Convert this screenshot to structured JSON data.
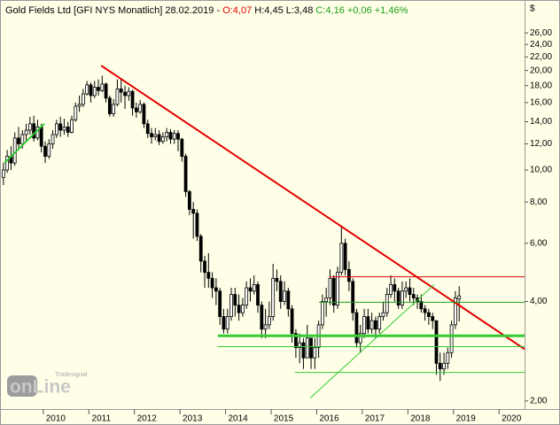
{
  "chart_data": {
    "type": "candlestick",
    "header": {
      "title": "Gold Fields Ltd [GFI NYS  Monatlich] 28.02.2019 -",
      "open_label": "O:4,07",
      "hl_label": "H:4,45 L:3,48",
      "close_label": "C:4,16 +0,06 +1,46%"
    },
    "y_label": "$",
    "watermark": {
      "brand": "Tradesignal",
      "product": "onLine"
    },
    "log_scale": true,
    "grid": false,
    "up_color": "#ffffff",
    "down_color": "#000000",
    "wick_color": "#000000",
    "x": [
      2009.125,
      2009.208,
      2009.292,
      2009.375,
      2009.458,
      2009.542,
      2009.625,
      2009.708,
      2009.792,
      2009.875,
      2009.958,
      2010.042,
      2010.125,
      2010.208,
      2010.292,
      2010.375,
      2010.458,
      2010.542,
      2010.625,
      2010.708,
      2010.792,
      2010.875,
      2010.958,
      2011.042,
      2011.125,
      2011.208,
      2011.292,
      2011.375,
      2011.458,
      2011.542,
      2011.625,
      2011.708,
      2011.792,
      2011.875,
      2011.958,
      2012.042,
      2012.125,
      2012.208,
      2012.292,
      2012.375,
      2012.458,
      2012.542,
      2012.625,
      2012.708,
      2012.792,
      2012.875,
      2012.958,
      2013.042,
      2013.125,
      2013.208,
      2013.292,
      2013.375,
      2013.458,
      2013.542,
      2013.625,
      2013.708,
      2013.792,
      2013.875,
      2013.958,
      2014.042,
      2014.125,
      2014.208,
      2014.292,
      2014.375,
      2014.458,
      2014.542,
      2014.625,
      2014.708,
      2014.792,
      2014.875,
      2014.958,
      2015.042,
      2015.125,
      2015.208,
      2015.292,
      2015.375,
      2015.458,
      2015.542,
      2015.625,
      2015.708,
      2015.792,
      2015.875,
      2015.958,
      2016.042,
      2016.125,
      2016.208,
      2016.292,
      2016.375,
      2016.458,
      2016.542,
      2016.625,
      2016.708,
      2016.792,
      2016.875,
      2016.958,
      2017.042,
      2017.125,
      2017.208,
      2017.292,
      2017.375,
      2017.458,
      2017.542,
      2017.625,
      2017.708,
      2017.792,
      2017.875,
      2017.958,
      2018.042,
      2018.125,
      2018.208,
      2018.292,
      2018.375,
      2018.458,
      2018.542,
      2018.625,
      2018.708,
      2018.792,
      2018.875,
      2018.958,
      2019.042,
      2019.125
    ],
    "open": [
      9.5,
      10.0,
      11.0,
      10.5,
      12.5,
      12.0,
      12.8,
      13.2,
      13.8,
      12.5,
      13.5,
      11.8,
      11.0,
      12.0,
      12.8,
      13.8,
      13.2,
      13.5,
      13.0,
      14.2,
      15.6,
      15.8,
      17.0,
      18.1,
      16.8,
      17.8,
      17.4,
      18.2,
      16.5,
      14.8,
      15.8,
      17.6,
      17.2,
      16.8,
      17.3,
      15.4,
      15.0,
      15.8,
      13.8,
      12.9,
      12.6,
      12.8,
      12.2,
      12.6,
      13.0,
      12.4,
      12.9,
      12.4,
      11.0,
      8.6,
      7.6,
      7.4,
      6.3,
      5.3,
      4.9,
      4.7,
      4.4,
      4.3,
      3.6,
      3.3,
      3.6,
      4.2,
      3.9,
      3.7,
      3.9,
      4.4,
      4.3,
      4.5,
      3.9,
      3.3,
      3.4,
      3.6,
      4.7,
      4.6,
      4.0,
      4.3,
      3.8,
      3.2,
      2.9,
      3.0,
      2.7,
      3.1,
      2.7,
      2.9,
      3.4,
      4.0,
      4.1,
      4.7,
      3.9,
      4.9,
      6.0,
      5.0,
      4.6,
      3.7,
      3.0,
      3.2,
      3.6,
      3.3,
      3.5,
      3.3,
      3.6,
      3.7,
      4.2,
      4.5,
      4.3,
      3.9,
      4.3,
      4.4,
      4.2,
      4.1,
      4.0,
      3.8,
      3.7,
      3.6,
      3.5,
      2.6,
      2.5,
      2.6,
      2.8,
      3.4,
      4.07
    ],
    "high": [
      10.5,
      11.5,
      11.8,
      13.0,
      13.5,
      13.2,
      13.8,
      14.5,
      14.6,
      14.2,
      13.8,
      12.2,
      12.4,
      13.2,
      14.2,
      14.5,
      14.3,
      14.0,
      14.6,
      16.0,
      16.8,
      17.6,
      18.6,
      18.4,
      18.6,
      18.8,
      19.3,
      18.4,
      16.8,
      16.4,
      18.8,
      19.0,
      18.0,
      17.8,
      17.5,
      16.0,
      16.3,
      16.0,
      14.2,
      13.4,
      13.4,
      13.2,
      13.0,
      13.4,
      13.3,
      13.2,
      13.2,
      12.5,
      11.2,
      8.7,
      8.0,
      7.6,
      6.4,
      5.5,
      5.6,
      4.9,
      4.7,
      4.4,
      3.8,
      3.8,
      4.4,
      4.4,
      4.2,
      4.1,
      4.6,
      4.7,
      4.8,
      4.6,
      4.0,
      3.8,
      4.0,
      5.2,
      5.0,
      4.8,
      4.6,
      4.4,
      3.9,
      3.3,
      3.2,
      3.1,
      3.4,
      3.1,
      3.1,
      3.5,
      4.2,
      4.4,
      5.0,
      4.8,
      5.1,
      6.8,
      6.2,
      5.3,
      4.7,
      3.8,
      3.4,
      3.8,
      3.8,
      3.7,
      3.6,
      3.7,
      4.0,
      4.4,
      4.8,
      4.7,
      4.4,
      4.6,
      4.6,
      4.7,
      4.4,
      4.2,
      4.2,
      3.9,
      3.8,
      3.7,
      3.5,
      2.8,
      2.8,
      2.9,
      3.5,
      4.3,
      4.45
    ],
    "low": [
      9.0,
      9.8,
      10.0,
      10.3,
      11.5,
      11.6,
      12.2,
      12.8,
      12.2,
      12.3,
      11.3,
      10.5,
      10.8,
      11.6,
      12.5,
      12.6,
      12.8,
      12.6,
      12.9,
      14.0,
      15.0,
      15.5,
      16.8,
      16.0,
      16.5,
      16.8,
      17.2,
      16.0,
      14.5,
      14.5,
      15.6,
      16.0,
      15.3,
      16.2,
      14.6,
      14.4,
      14.8,
      13.4,
      12.5,
      12.0,
      12.3,
      11.9,
      12.0,
      12.2,
      12.0,
      12.0,
      11.4,
      10.6,
      8.3,
      7.3,
      6.2,
      6.1,
      4.9,
      4.4,
      4.4,
      4.1,
      3.9,
      3.4,
      3.2,
      3.2,
      3.5,
      3.6,
      3.5,
      3.6,
      3.8,
      4.0,
      4.2,
      3.7,
      3.1,
      3.1,
      3.3,
      3.5,
      4.3,
      3.8,
      3.9,
      3.6,
      3.0,
      2.7,
      2.6,
      2.5,
      2.7,
      2.5,
      2.5,
      2.7,
      3.3,
      3.6,
      3.9,
      3.7,
      3.8,
      4.8,
      4.8,
      4.3,
      3.5,
      2.9,
      2.8,
      3.1,
      3.2,
      3.2,
      3.1,
      3.2,
      3.5,
      3.6,
      4.1,
      4.0,
      3.8,
      3.8,
      4.1,
      4.0,
      3.9,
      3.8,
      3.7,
      3.5,
      3.4,
      3.3,
      2.4,
      2.3,
      2.4,
      2.5,
      2.7,
      3.3,
      3.48
    ],
    "close": [
      10.0,
      11.0,
      10.5,
      12.5,
      12.0,
      12.8,
      13.2,
      13.8,
      12.5,
      13.5,
      11.8,
      11.0,
      12.0,
      12.8,
      13.8,
      13.2,
      13.5,
      13.0,
      14.2,
      15.6,
      15.8,
      17.0,
      18.1,
      16.8,
      17.8,
      17.4,
      18.2,
      16.5,
      14.8,
      15.8,
      17.6,
      17.2,
      16.8,
      17.3,
      15.4,
      15.0,
      15.8,
      13.8,
      12.9,
      12.6,
      12.8,
      12.2,
      12.6,
      13.0,
      12.4,
      12.9,
      12.4,
      11.0,
      8.6,
      7.6,
      7.4,
      6.3,
      5.3,
      4.9,
      4.7,
      4.4,
      4.3,
      3.6,
      3.3,
      3.6,
      4.2,
      3.9,
      3.7,
      3.9,
      4.4,
      4.3,
      4.5,
      3.9,
      3.3,
      3.4,
      3.6,
      4.7,
      4.6,
      4.0,
      4.3,
      3.8,
      3.2,
      2.9,
      3.0,
      2.7,
      3.1,
      2.7,
      2.9,
      3.4,
      4.0,
      4.1,
      4.7,
      3.9,
      4.9,
      6.0,
      5.0,
      4.6,
      3.7,
      3.0,
      3.2,
      3.6,
      3.3,
      3.5,
      3.3,
      3.6,
      3.7,
      4.2,
      4.5,
      4.3,
      3.9,
      4.3,
      4.4,
      4.2,
      4.1,
      4.0,
      3.8,
      3.7,
      3.6,
      3.5,
      2.6,
      2.5,
      2.6,
      2.8,
      3.4,
      4.1,
      4.16
    ],
    "xlim": [
      2009.05,
      2020.56
    ],
    "xticks": [
      2010,
      2011,
      2012,
      2013,
      2014,
      2015,
      2016,
      2017,
      2018,
      2019,
      2020
    ],
    "ylim": [
      1.89,
      32.7
    ],
    "yticks": [
      {
        "value": 2,
        "label": "2,00"
      },
      {
        "value": 4,
        "label": "4,00"
      },
      {
        "value": 6,
        "label": "6,00"
      },
      {
        "value": 8,
        "label": "8,00"
      },
      {
        "value": 10,
        "label": "10,00"
      },
      {
        "value": 12,
        "label": "12,00"
      },
      {
        "value": 14,
        "label": "14,00"
      },
      {
        "value": 16,
        "label": "16,00"
      },
      {
        "value": 18,
        "label": "18,00"
      },
      {
        "value": 20,
        "label": "20,00"
      },
      {
        "value": 22,
        "label": "22,00"
      },
      {
        "value": 24,
        "label": "24,00"
      },
      {
        "value": 26,
        "label": "26,00"
      }
    ],
    "lines": [
      {
        "color": "#e00000",
        "width": 2,
        "x": [
          2011.27,
          2020.56
        ],
        "y": [
          20.7,
          2.87
        ]
      },
      {
        "color": "#e00000",
        "width": 1,
        "x": [
          2016.28,
          2020.56
        ],
        "y": [
          4.75,
          4.75
        ]
      },
      {
        "color": "#1a9e1a",
        "width": 1,
        "x": [
          2016.05,
          2020.56
        ],
        "y": [
          3.98,
          3.98
        ]
      },
      {
        "color": "#33cc33",
        "width": 3,
        "x": [
          2013.83,
          2020.56
        ],
        "y": [
          3.15,
          3.15
        ]
      },
      {
        "color": "#33cc33",
        "width": 1,
        "x": [
          2013.83,
          2020.56
        ],
        "y": [
          2.92,
          2.92
        ]
      },
      {
        "color": "#33cc33",
        "width": 1,
        "x": [
          2015.52,
          2020.56
        ],
        "y": [
          2.44,
          2.44
        ]
      },
      {
        "color": "#33cc33",
        "width": 1,
        "x": [
          2015.855,
          2018.58
        ],
        "y": [
          2.04,
          4.5
        ]
      },
      {
        "color": "#33cc33",
        "width": 2,
        "x": [
          2009.147,
          2010.02
        ],
        "y": [
          10.5,
          13.8
        ]
      }
    ]
  }
}
